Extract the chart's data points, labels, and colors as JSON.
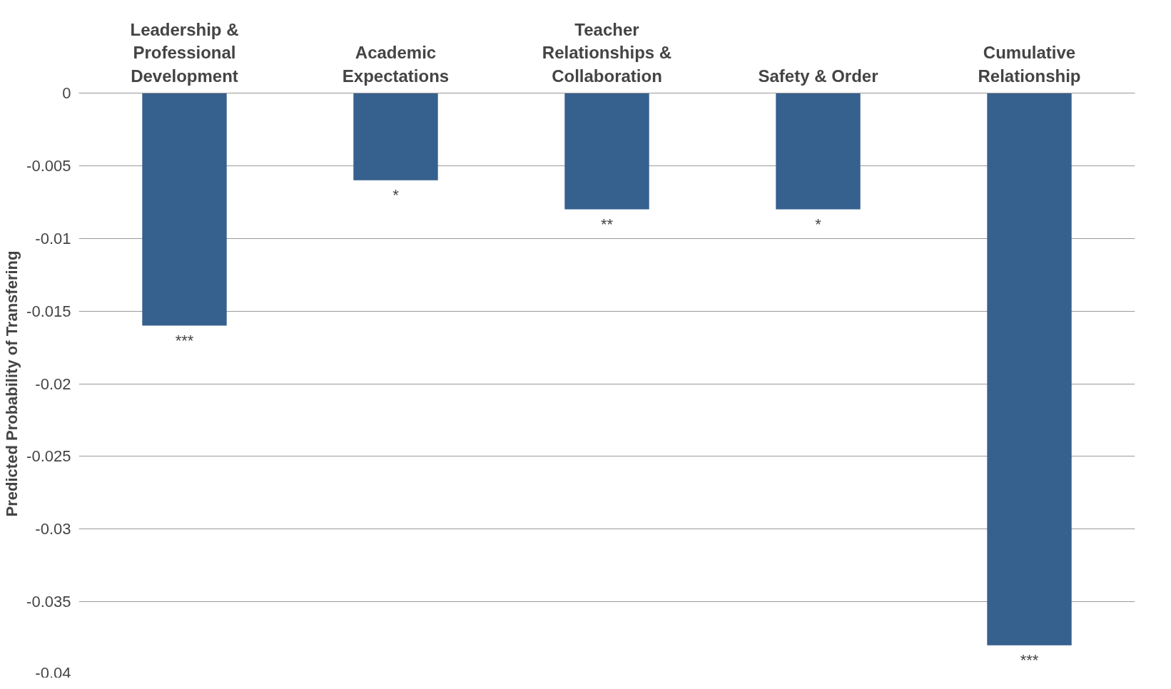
{
  "chart_data": {
    "type": "bar",
    "ylabel": "Predicted Probability of Transfering",
    "categories": [
      "Leadership & Professional Development",
      "Academic Expectations",
      "Teacher Relationships & Collaboration",
      "Safety & Order",
      "Cumulative Relationship"
    ],
    "values": [
      -0.016,
      -0.006,
      -0.008,
      -0.008,
      -0.038
    ],
    "color": "#36608e",
    "ylim": [
      -0.04,
      0
    ],
    "yticks": [
      0,
      -0.005,
      -0.01,
      -0.015,
      -0.02,
      -0.025,
      -0.03,
      -0.035,
      -0.04
    ],
    "grid": "y",
    "annotations": [
      {
        "text": "***",
        "x": "Leadership & Professional Development",
        "y": -0.016
      },
      {
        "text": "*",
        "x": "Academic Expectations",
        "y": -0.006
      },
      {
        "text": "**",
        "x": "Teacher Relationships & Collaboration",
        "y": -0.008
      },
      {
        "text": "*",
        "x": "Safety & Order",
        "y": -0.008
      },
      {
        "text": "***",
        "x": "Cumulative Relationship",
        "y": -0.038
      }
    ]
  }
}
